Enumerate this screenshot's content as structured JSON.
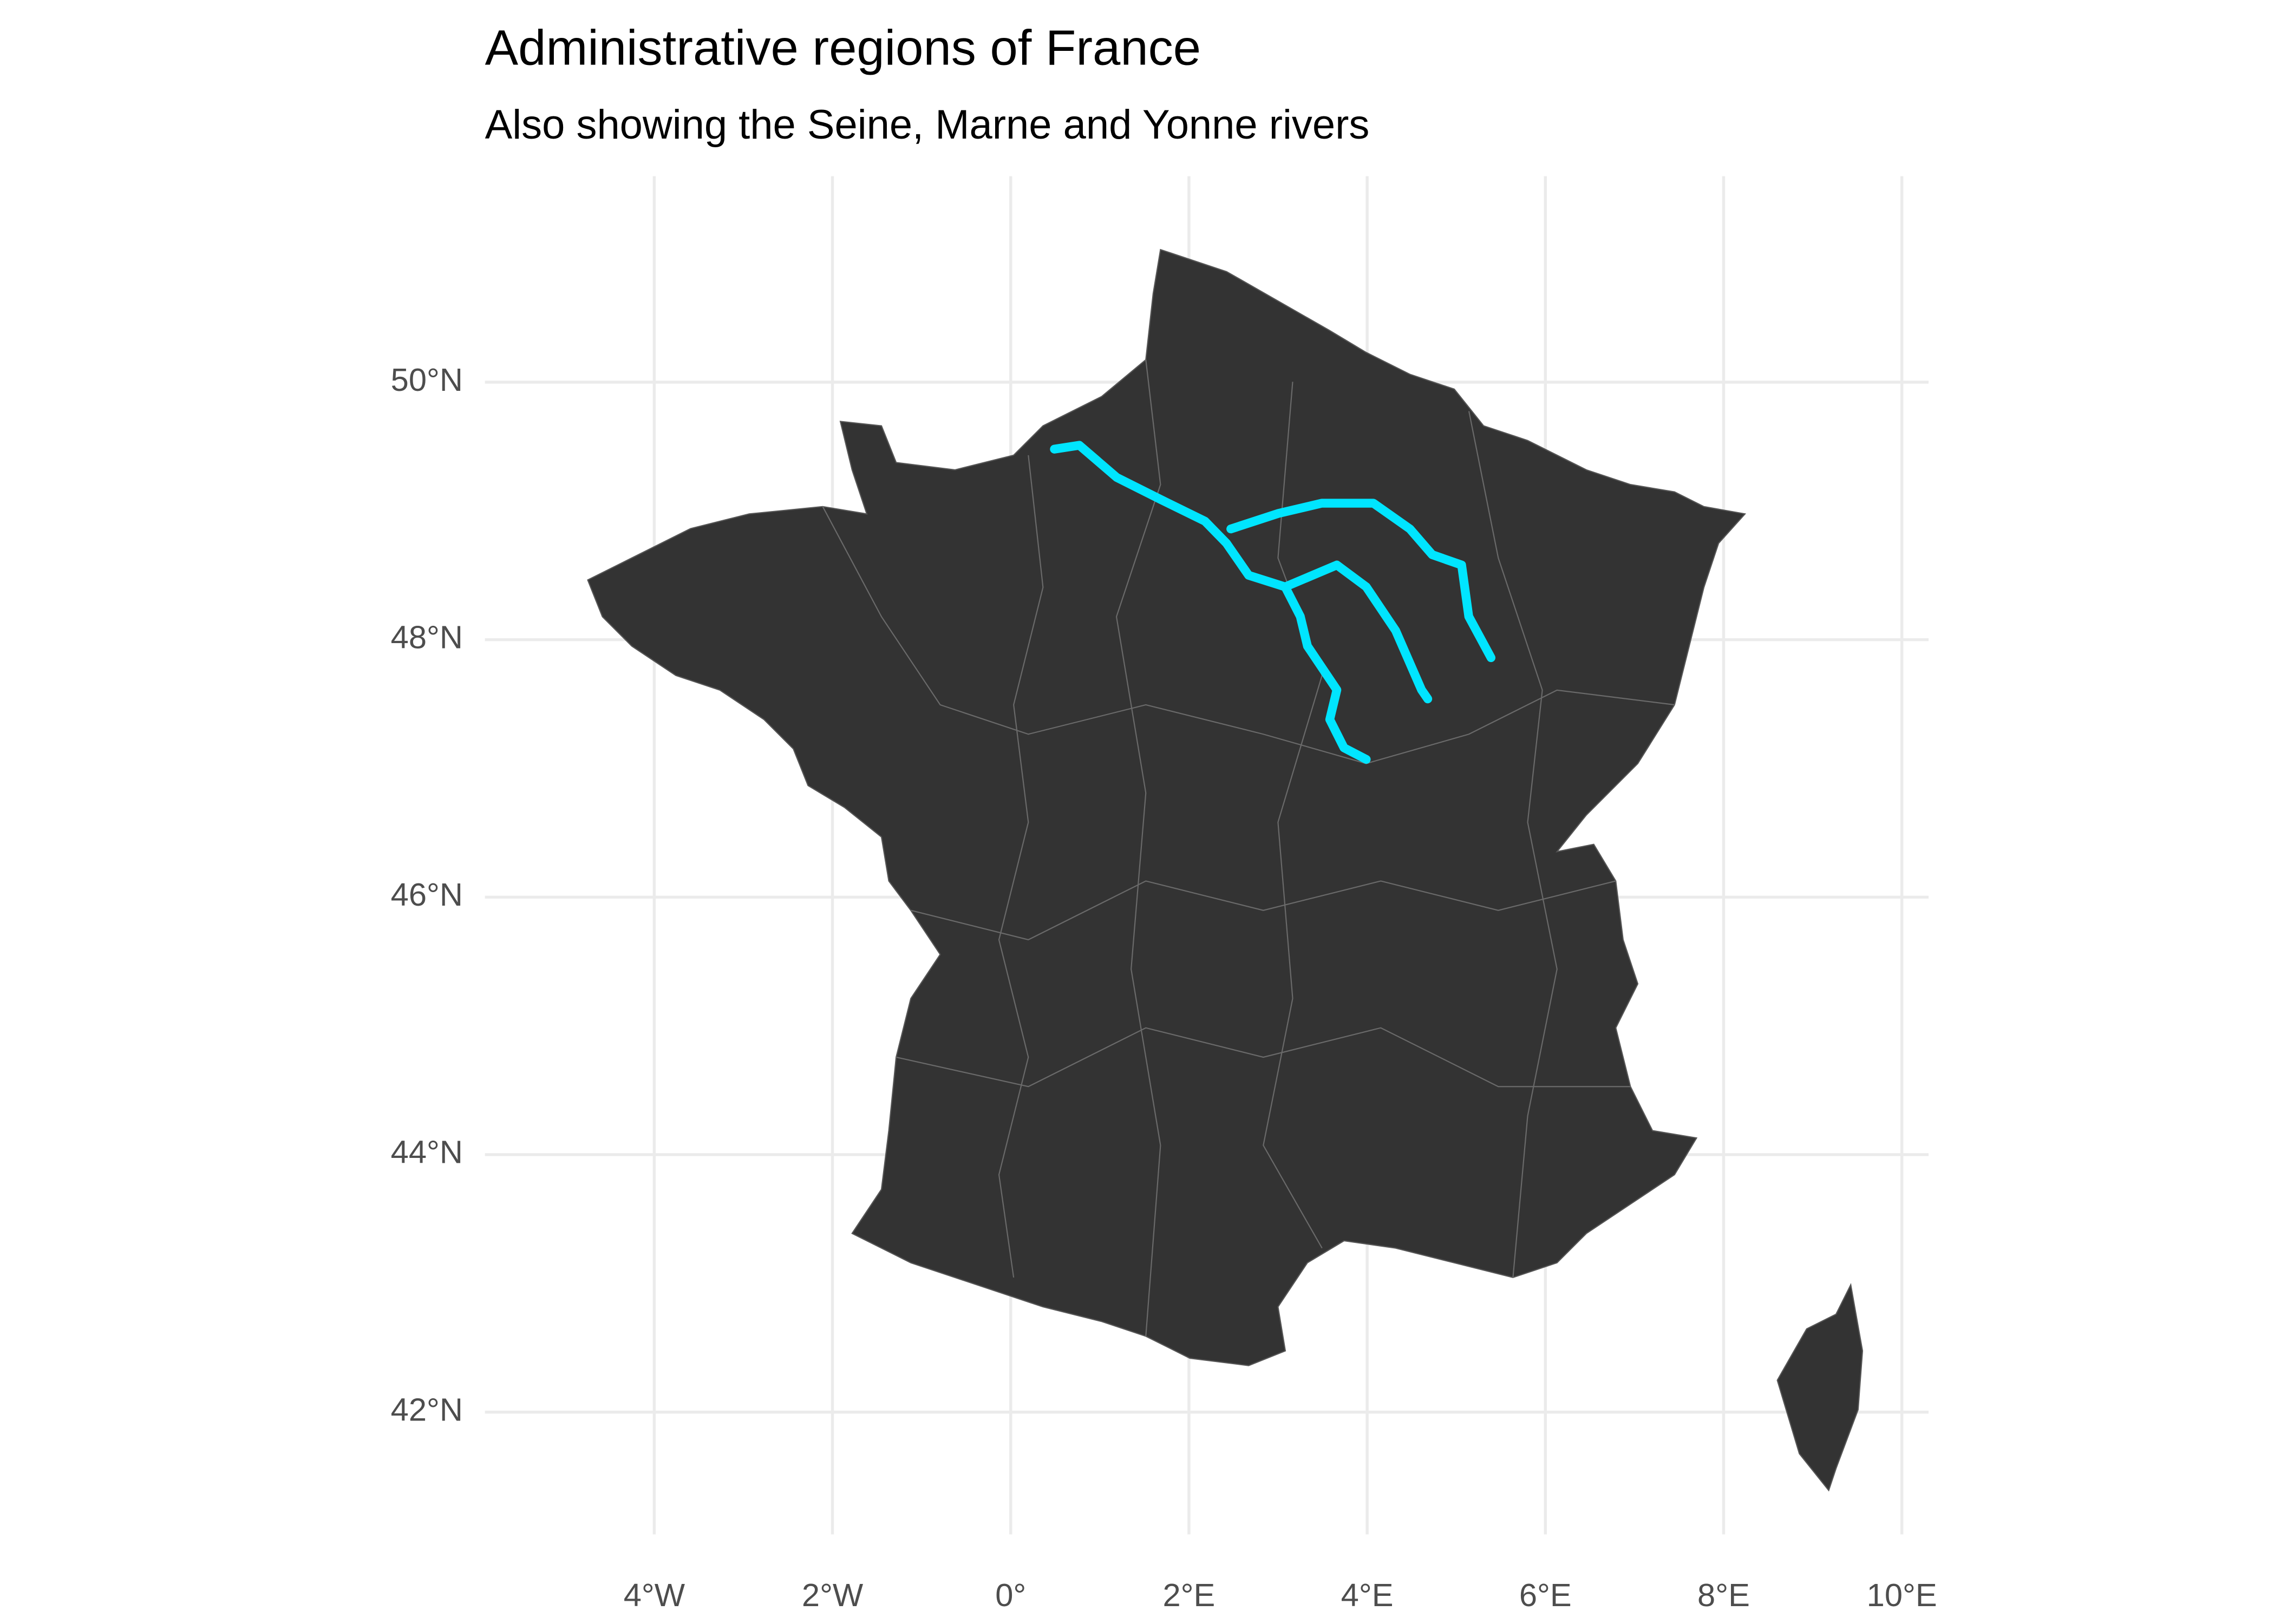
{
  "chart_data": {
    "type": "map",
    "title": "Administrative regions of France",
    "subtitle": "Also showing the Seine, Marne and Yonne rivers",
    "xlim": [
      -5.9,
      10.3
    ],
    "ylim": [
      41.05,
      51.6
    ],
    "xticks": [
      {
        "value": -4,
        "label": "4°W"
      },
      {
        "value": -2,
        "label": "2°W"
      },
      {
        "value": 0,
        "label": "0°"
      },
      {
        "value": 2,
        "label": "2°E"
      },
      {
        "value": 4,
        "label": "4°E"
      },
      {
        "value": 6,
        "label": "6°E"
      },
      {
        "value": 8,
        "label": "8°E"
      },
      {
        "value": 10,
        "label": "10°E"
      }
    ],
    "yticks": [
      {
        "value": 42,
        "label": "42°N"
      },
      {
        "value": 44,
        "label": "44°N"
      },
      {
        "value": 46,
        "label": "46°N"
      },
      {
        "value": 48,
        "label": "48°N"
      },
      {
        "value": 50,
        "label": "50°N"
      }
    ],
    "grid": true,
    "river_color": "#00e5ff",
    "rivers": [
      {
        "x": [
          0.49,
          0.77,
          1.19,
          1.68,
          2.18,
          2.42,
          2.67,
          3.08,
          3.66,
          3.99,
          4.32,
          4.61,
          4.68
        ],
        "y": [
          49.48,
          49.51,
          49.26,
          49.09,
          48.92,
          48.75,
          48.5,
          48.41,
          48.58,
          48.41,
          48.07,
          47.61,
          47.54
        ]
      },
      {
        "x": [
          3.08,
          3.25,
          3.33,
          3.66,
          3.58,
          3.74,
          3.99
        ],
        "y": [
          48.41,
          48.18,
          47.95,
          47.61,
          47.38,
          47.16,
          47.07
        ]
      },
      {
        "x": [
          2.47,
          3.0,
          3.49,
          4.07,
          4.48,
          4.73,
          5.06,
          5.14,
          5.39
        ],
        "y": [
          48.86,
          48.98,
          49.06,
          49.06,
          48.86,
          48.66,
          48.58,
          48.18,
          47.86
        ]
      }
    ]
  }
}
